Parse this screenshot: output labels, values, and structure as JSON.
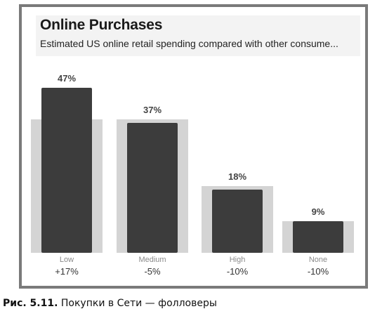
{
  "chart_data": {
    "type": "bar",
    "title": "Online Purchases",
    "subtitle": "Estimated US online retail spending compared with other consume...",
    "categories": [
      "Low",
      "Medium",
      "High",
      "None"
    ],
    "changes": [
      "+17%",
      "-5%",
      "-10%",
      "-10%"
    ],
    "series": [
      {
        "values": [
          47,
          37,
          18,
          9
        ],
        "labels": [
          "47%",
          "37%",
          "18%",
          "9%"
        ],
        "color": "#3c3c3c"
      },
      {
        "values": [
          38,
          38,
          19,
          9
        ],
        "color": "#d4d4d4"
      }
    ],
    "ylim": [
      0,
      50
    ],
    "grid": false,
    "legend": "none"
  },
  "caption": {
    "label": "Рис. 5.11.",
    "text": "Покупки в Сети — фолловеры"
  }
}
